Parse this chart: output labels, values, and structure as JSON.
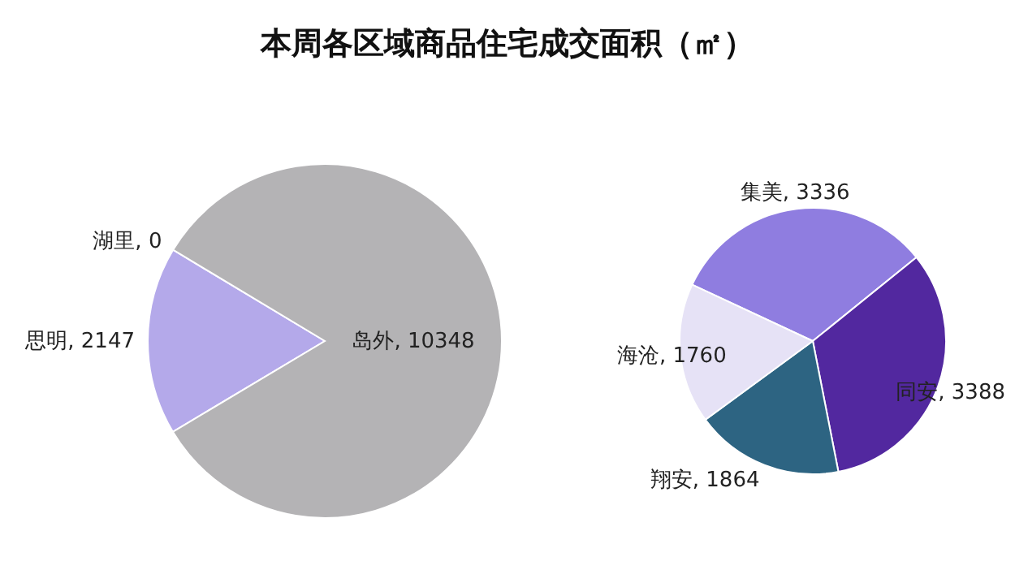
{
  "chart_data": [
    {
      "type": "pie",
      "title": "本周各区域商品住宅成交面积（㎡）",
      "categories": [
        "湖里",
        "思明",
        "岛外"
      ],
      "values": [
        0,
        2147,
        10348
      ],
      "colors": [
        "#a9a9c9",
        "#b4a9ea",
        "#b4b3b5"
      ],
      "value_labels": [
        ", 0",
        ", 2147",
        ", 10348"
      ]
    },
    {
      "type": "pie",
      "categories": [
        "集美",
        "同安",
        "翔安",
        "海沧"
      ],
      "values": [
        3336,
        3388,
        1864,
        1760
      ],
      "colors": [
        "#8f7de0",
        "#52289f",
        "#2d6482",
        "#e6e2f6"
      ],
      "value_labels": [
        ", 3336",
        ", 3388",
        ", 1864",
        ", 1760"
      ]
    }
  ]
}
